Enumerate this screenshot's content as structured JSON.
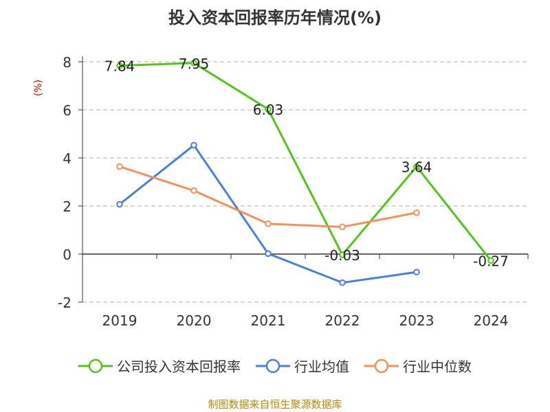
{
  "chart_data": {
    "type": "line",
    "title": "投入资本回报率历年情况(%)",
    "ylabel": "(%)",
    "xlabel": "",
    "categories": [
      "2019",
      "2020",
      "2021",
      "2022",
      "2023",
      "2024"
    ],
    "ylim": [
      -2,
      8
    ],
    "yticks": [
      -2,
      0,
      2,
      4,
      6,
      8
    ],
    "grid": true,
    "legend_position": "bottom",
    "series": [
      {
        "name": "公司投入资本回报率",
        "values": [
          7.84,
          7.95,
          6.03,
          -0.03,
          3.64,
          -0.27
        ],
        "color": "#52c41a",
        "data_labels": [
          "7.84",
          "7.95",
          "6.03",
          "-0.03",
          "3.64",
          "-0.27"
        ]
      },
      {
        "name": "行业均值",
        "values": [
          2.07,
          4.53,
          0.02,
          -1.19,
          -0.75,
          null
        ],
        "color": "#4a7fdc"
      },
      {
        "name": "行业中位数",
        "values": [
          3.64,
          2.64,
          1.26,
          1.13,
          1.72,
          null
        ],
        "color": "#f5905a"
      }
    ]
  },
  "source": "制图数据来自恒生聚源数据库"
}
